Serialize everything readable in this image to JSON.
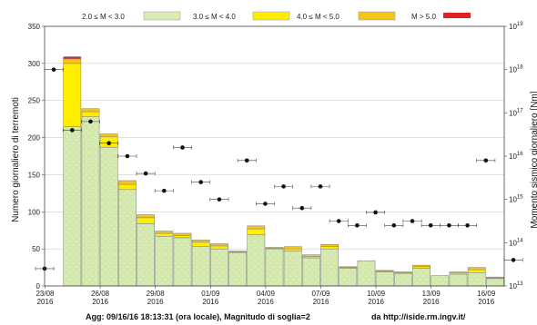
{
  "chart_data": {
    "type": "bar",
    "ylabel_left": "Numero giornaliero di terremoti",
    "ylabel_right": "Momento sismico giornaliero [Nm]",
    "ylim_left": [
      0,
      350
    ],
    "yticks_left": [
      0,
      50,
      100,
      150,
      200,
      250,
      300,
      350
    ],
    "ylim_right": [
      13,
      19
    ],
    "yticks_right": [
      {
        "exp": 13,
        "base": "10",
        "power": "13"
      },
      {
        "exp": 14,
        "base": "10",
        "power": "14"
      },
      {
        "exp": 15,
        "base": "10",
        "power": "15"
      },
      {
        "exp": 16,
        "base": "10",
        "power": "16"
      },
      {
        "exp": 17,
        "base": "10",
        "power": "17"
      },
      {
        "exp": 18,
        "base": "10",
        "power": "18"
      },
      {
        "exp": 19,
        "base": "10",
        "power": "19"
      }
    ],
    "right_axis_scale": "log",
    "grid": "horizontal",
    "xticks": [
      {
        "index": 0,
        "line1": "23/08",
        "line2": "2016"
      },
      {
        "index": 3,
        "line1": "26/08",
        "line2": "2016"
      },
      {
        "index": 6,
        "line1": "29/08",
        "line2": "2016"
      },
      {
        "index": 9,
        "line1": "01/09",
        "line2": "2016"
      },
      {
        "index": 12,
        "line1": "04/09",
        "line2": "2016"
      },
      {
        "index": 15,
        "line1": "07/09",
        "line2": "2016"
      },
      {
        "index": 18,
        "line1": "10/09",
        "line2": "2016"
      },
      {
        "index": 21,
        "line1": "13/09",
        "line2": "2016"
      },
      {
        "index": 24,
        "line1": "16/09",
        "line2": "2016"
      }
    ],
    "legend_position": "top",
    "series": [
      {
        "name": "2.0 ≤ M < 3.0",
        "color": "#d8ecb4",
        "values": [
          0,
          215,
          228,
          187,
          130,
          84,
          67,
          65,
          53,
          50,
          45,
          69,
          50,
          47,
          38,
          50,
          24,
          34,
          19,
          17,
          24,
          14,
          16,
          18,
          10
        ]
      },
      {
        "name": "3.0 ≤ M < 4.0",
        "color": "#ffee00",
        "values": [
          0,
          85,
          7,
          14,
          7,
          8,
          4,
          3,
          6,
          4,
          1,
          8,
          1,
          3,
          2,
          3,
          1,
          0,
          1,
          1,
          2,
          0,
          2,
          4,
          1
        ]
      },
      {
        "name": "4.0 ≤ M < 5.0",
        "color": "#f5c518",
        "values": [
          0,
          6,
          4,
          4,
          5,
          4,
          3,
          3,
          3,
          3,
          1,
          4,
          1,
          3,
          2,
          3,
          1,
          0,
          1,
          1,
          2,
          0,
          1,
          3,
          1
        ]
      },
      {
        "name": "M > 5.0",
        "color": "#e02020",
        "values": [
          0,
          3,
          0,
          0,
          0,
          0,
          0,
          0,
          0,
          0,
          0,
          0,
          0,
          0,
          0,
          0,
          0,
          0,
          0,
          0,
          0,
          0,
          0,
          0,
          0
        ]
      }
    ],
    "moment_points": [
      {
        "x": -0.5,
        "exp": 13.4
      },
      {
        "x": 0.0,
        "exp": 18.0
      },
      {
        "x": 1.0,
        "exp": 16.6
      },
      {
        "x": 2.0,
        "exp": 16.8
      },
      {
        "x": 3.0,
        "exp": 16.3
      },
      {
        "x": 4.0,
        "exp": 16.0
      },
      {
        "x": 5.0,
        "exp": 15.6
      },
      {
        "x": 6.0,
        "exp": 15.2
      },
      {
        "x": 7.0,
        "exp": 16.2
      },
      {
        "x": 8.0,
        "exp": 15.4
      },
      {
        "x": 9.0,
        "exp": 15.0
      },
      {
        "x": 10.5,
        "exp": 15.9
      },
      {
        "x": 11.5,
        "exp": 14.9
      },
      {
        "x": 12.5,
        "exp": 15.3
      },
      {
        "x": 13.5,
        "exp": 14.8
      },
      {
        "x": 14.5,
        "exp": 15.3
      },
      {
        "x": 15.5,
        "exp": 14.5
      },
      {
        "x": 16.5,
        "exp": 14.4
      },
      {
        "x": 17.5,
        "exp": 14.7
      },
      {
        "x": 18.5,
        "exp": 14.4
      },
      {
        "x": 19.5,
        "exp": 14.5
      },
      {
        "x": 20.5,
        "exp": 14.4
      },
      {
        "x": 21.5,
        "exp": 14.4
      },
      {
        "x": 22.5,
        "exp": 14.4
      },
      {
        "x": 23.5,
        "exp": 15.9
      },
      {
        "x": 25.0,
        "exp": 13.6
      }
    ],
    "footer_left": "Agg: 09/16/16 18:13:31 (ora locale), Magnitudo di soglia=2",
    "footer_right": "da http://iside.rm.ingv.it/"
  }
}
